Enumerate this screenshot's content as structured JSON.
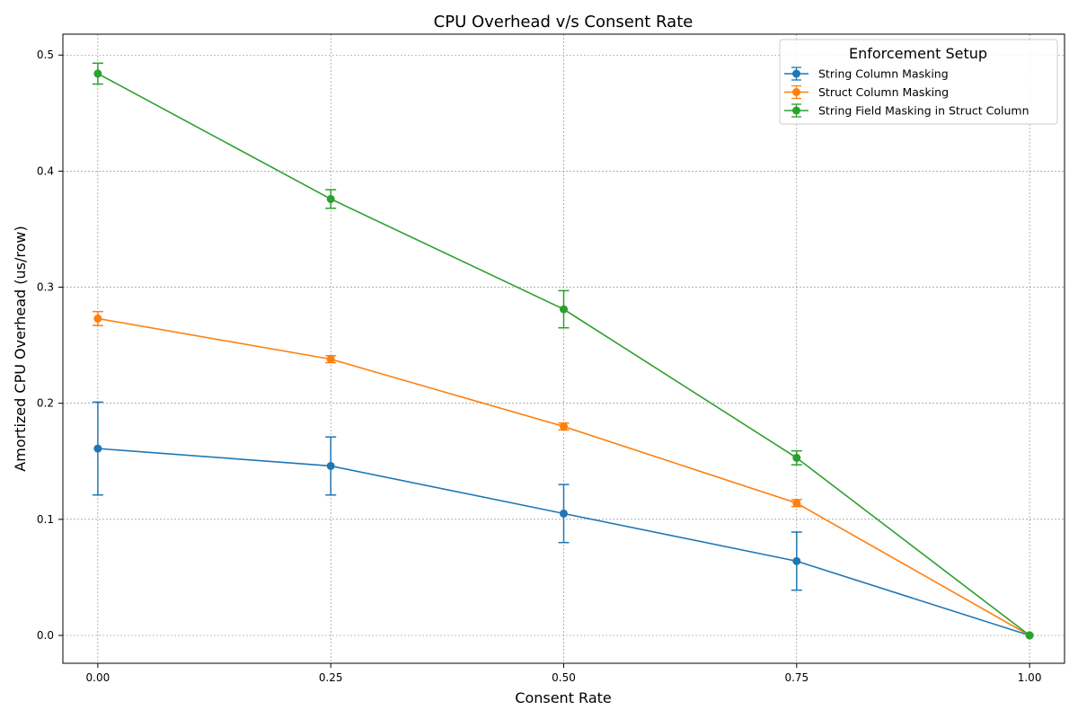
{
  "chart_data": {
    "type": "line",
    "title": "CPU Overhead v/s Consent Rate",
    "xlabel": "Consent Rate",
    "ylabel": "Amortized CPU Overhead (us/row)",
    "x": [
      0.0,
      0.25,
      0.5,
      0.75,
      1.0
    ],
    "x_tick_labels": [
      "0.00",
      "0.25",
      "0.50",
      "0.75",
      "1.00"
    ],
    "y_tick_values": [
      0.0,
      0.1,
      0.2,
      0.3,
      0.4,
      0.5
    ],
    "y_tick_labels": [
      "0.0",
      "0.1",
      "0.2",
      "0.3",
      "0.4",
      "0.5"
    ],
    "xlim": [
      -0.0375,
      1.0375
    ],
    "ylim": [
      -0.024,
      0.518
    ],
    "grid": true,
    "legend": {
      "title": "Enforcement Setup",
      "placement": "top-right"
    },
    "series": [
      {
        "name": "String Column Masking",
        "color": "#1f77b4",
        "values": [
          0.161,
          0.146,
          0.105,
          0.064,
          0.0
        ],
        "errors": [
          0.04,
          0.025,
          0.025,
          0.025,
          0.0
        ]
      },
      {
        "name": "Struct Column Masking",
        "color": "#ff7f0e",
        "values": [
          0.273,
          0.238,
          0.18,
          0.114,
          0.0
        ],
        "errors": [
          0.006,
          0.003,
          0.003,
          0.003,
          0.0
        ]
      },
      {
        "name": "String Field Masking in Struct Column",
        "color": "#2ca02c",
        "values": [
          0.484,
          0.376,
          0.281,
          0.153,
          0.0
        ],
        "errors": [
          0.009,
          0.008,
          0.016,
          0.006,
          0.0
        ]
      }
    ]
  }
}
